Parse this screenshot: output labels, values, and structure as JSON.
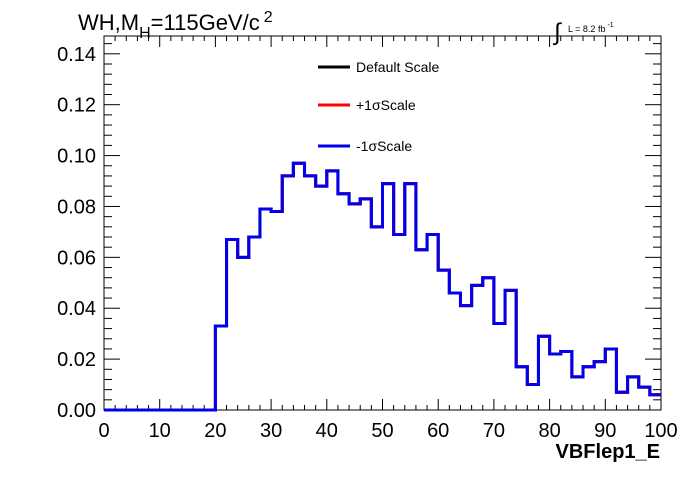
{
  "chart_data": {
    "type": "line",
    "style": "step-histogram",
    "title": "WH,M",
    "title_subscript": "H",
    "title_suffix": "=115GeV/c",
    "title_superscript": "2",
    "lumi_label": "L = 8.2 fb",
    "lumi_superscript": "-1",
    "xlabel": "VBFlep1_E",
    "ylabel": "",
    "xlim": [
      0,
      100
    ],
    "ylim": [
      0,
      0.147
    ],
    "bin_width": 2,
    "xticks": [
      0,
      10,
      20,
      30,
      40,
      50,
      60,
      70,
      80,
      90,
      100
    ],
    "xtick_labels": [
      "0",
      "10",
      "20",
      "30",
      "40",
      "50",
      "60",
      "70",
      "80",
      "90",
      "100"
    ],
    "yticks": [
      0,
      0.02,
      0.04,
      0.06,
      0.08,
      0.1,
      0.12,
      0.14
    ],
    "ytick_labels": [
      "0.00",
      "0.02",
      "0.04",
      "0.06",
      "0.08",
      "0.10",
      "0.12",
      "0.14"
    ],
    "grid": false,
    "legend_position": "top-center",
    "bin_edges": [
      0,
      2,
      4,
      6,
      8,
      10,
      12,
      14,
      16,
      18,
      20,
      22,
      24,
      26,
      28,
      30,
      32,
      34,
      36,
      38,
      40,
      42,
      44,
      46,
      48,
      50,
      52,
      54,
      56,
      58,
      60,
      62,
      64,
      66,
      68,
      70,
      72,
      74,
      76,
      78,
      80,
      82,
      84,
      86,
      88,
      90,
      92,
      94,
      96,
      98,
      100
    ],
    "series": [
      {
        "name": "Default Scale",
        "color": "#000000",
        "values": [
          0,
          0,
          0,
          0,
          0,
          0,
          0,
          0,
          0,
          0,
          0.033,
          0.067,
          0.06,
          0.068,
          0.079,
          0.078,
          0.092,
          0.097,
          0.092,
          0.088,
          0.094,
          0.085,
          0.081,
          0.083,
          0.072,
          0.089,
          0.069,
          0.089,
          0.063,
          0.069,
          0.055,
          0.046,
          0.041,
          0.049,
          0.052,
          0.034,
          0.047,
          0.017,
          0.01,
          0.029,
          0.022,
          0.023,
          0.013,
          0.017,
          0.019,
          0.024,
          0.007,
          0.013,
          0.009,
          0.006
        ]
      },
      {
        "name": "+1σScale",
        "color": "#ff0000",
        "values": [
          0,
          0,
          0,
          0,
          0,
          0,
          0,
          0,
          0,
          0,
          0.033,
          0.067,
          0.06,
          0.068,
          0.079,
          0.078,
          0.092,
          0.097,
          0.092,
          0.088,
          0.094,
          0.085,
          0.081,
          0.083,
          0.072,
          0.089,
          0.069,
          0.089,
          0.063,
          0.069,
          0.055,
          0.046,
          0.041,
          0.049,
          0.052,
          0.034,
          0.047,
          0.017,
          0.01,
          0.029,
          0.022,
          0.023,
          0.013,
          0.017,
          0.019,
          0.024,
          0.007,
          0.013,
          0.009,
          0.006
        ]
      },
      {
        "name": "-1σScale",
        "color": "#0000ee",
        "values": [
          0,
          0,
          0,
          0,
          0,
          0,
          0,
          0,
          0,
          0,
          0.033,
          0.067,
          0.06,
          0.068,
          0.079,
          0.078,
          0.092,
          0.097,
          0.092,
          0.088,
          0.094,
          0.085,
          0.081,
          0.083,
          0.072,
          0.089,
          0.069,
          0.089,
          0.063,
          0.069,
          0.055,
          0.046,
          0.041,
          0.049,
          0.052,
          0.034,
          0.047,
          0.017,
          0.01,
          0.029,
          0.022,
          0.023,
          0.013,
          0.017,
          0.019,
          0.024,
          0.007,
          0.013,
          0.009,
          0.006
        ]
      }
    ]
  }
}
